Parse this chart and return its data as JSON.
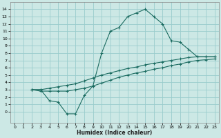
{
  "xlabel": "Humidex (Indice chaleur)",
  "bg_color": "#cce8e5",
  "grid_color": "#99cccc",
  "line_color": "#1a6b60",
  "xlim": [
    -0.5,
    23.5
  ],
  "ylim": [
    -1.5,
    15
  ],
  "xticks": [
    0,
    1,
    2,
    3,
    4,
    5,
    6,
    7,
    8,
    9,
    10,
    11,
    12,
    13,
    14,
    15,
    16,
    17,
    18,
    19,
    20,
    21,
    22,
    23
  ],
  "yticks": [
    0,
    1,
    2,
    3,
    4,
    5,
    6,
    7,
    8,
    9,
    10,
    11,
    12,
    13,
    14
  ],
  "curve1_x": [
    2,
    3,
    4,
    5,
    6,
    7,
    8,
    9,
    10,
    11,
    12,
    13,
    14,
    15,
    16,
    17,
    18,
    19,
    20,
    21,
    22,
    23
  ],
  "curve1_y": [
    3.0,
    3.0,
    1.5,
    1.3,
    -0.3,
    -0.3,
    2.2,
    3.5,
    8.0,
    11.0,
    11.5,
    13.0,
    13.5,
    14.0,
    13.0,
    12.0,
    9.7,
    9.5,
    8.5,
    7.5,
    7.5,
    7.5
  ],
  "curve2_x": [
    2,
    3,
    4,
    5,
    6,
    7,
    8,
    9,
    10,
    11,
    12,
    13,
    14,
    15,
    16,
    17,
    18,
    19,
    20,
    21,
    22,
    23
  ],
  "curve2_y": [
    3.0,
    3.0,
    3.2,
    3.4,
    3.6,
    3.8,
    4.2,
    4.6,
    5.0,
    5.3,
    5.6,
    5.9,
    6.1,
    6.4,
    6.6,
    6.8,
    7.0,
    7.2,
    7.4,
    7.5,
    7.5,
    7.5
  ],
  "curve3_x": [
    2,
    3,
    4,
    5,
    6,
    7,
    8,
    9,
    10,
    11,
    12,
    13,
    14,
    15,
    16,
    17,
    18,
    19,
    20,
    21,
    22,
    23
  ],
  "curve3_y": [
    3.0,
    2.8,
    2.8,
    2.8,
    2.8,
    3.0,
    3.2,
    3.5,
    3.9,
    4.3,
    4.7,
    5.0,
    5.3,
    5.5,
    5.8,
    6.0,
    6.3,
    6.5,
    6.8,
    7.0,
    7.1,
    7.2
  ]
}
